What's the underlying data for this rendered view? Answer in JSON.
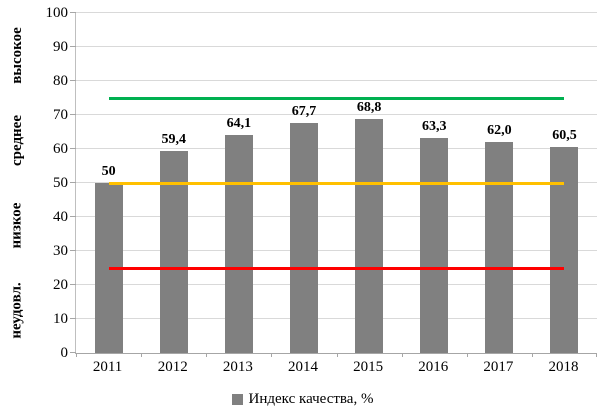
{
  "chart_data": {
    "type": "bar",
    "title": "",
    "categories": [
      "2011",
      "2012",
      "2013",
      "2014",
      "2015",
      "2016",
      "2017",
      "2018"
    ],
    "values": [
      50,
      59.4,
      64.1,
      67.7,
      68.8,
      63.3,
      62.0,
      60.5
    ],
    "value_labels": [
      "50",
      "59,4",
      "64,1",
      "67,7",
      "68,8",
      "63,3",
      "62,0",
      "60,5"
    ],
    "series_name": "Индекс качества, %",
    "xlabel": "",
    "ylabel": "",
    "ylim": [
      0,
      100
    ],
    "ytick_step": 10,
    "yticks": [
      0,
      10,
      20,
      30,
      40,
      50,
      60,
      70,
      80,
      90,
      100
    ],
    "grid": "horizontal",
    "legend_position": "bottom",
    "zone_labels": [
      {
        "label": "высокое",
        "range": [
          75,
          100
        ]
      },
      {
        "label": "среднее",
        "range": [
          50,
          75
        ]
      },
      {
        "label": "низкое",
        "range": [
          25,
          50
        ]
      },
      {
        "label": "неудовл.",
        "range": [
          0,
          25
        ]
      }
    ],
    "reference_lines": [
      {
        "value": 75,
        "color": "#00b050"
      },
      {
        "value": 50,
        "color": "#ffc000"
      },
      {
        "value": 25,
        "color": "#ff0000"
      }
    ],
    "colors": {
      "bar": "#808080",
      "gridline": "#d9d9d9",
      "axis": "#a6a6a6",
      "text": "#000000"
    }
  },
  "legend": {
    "label": "Индекс качества, %"
  }
}
